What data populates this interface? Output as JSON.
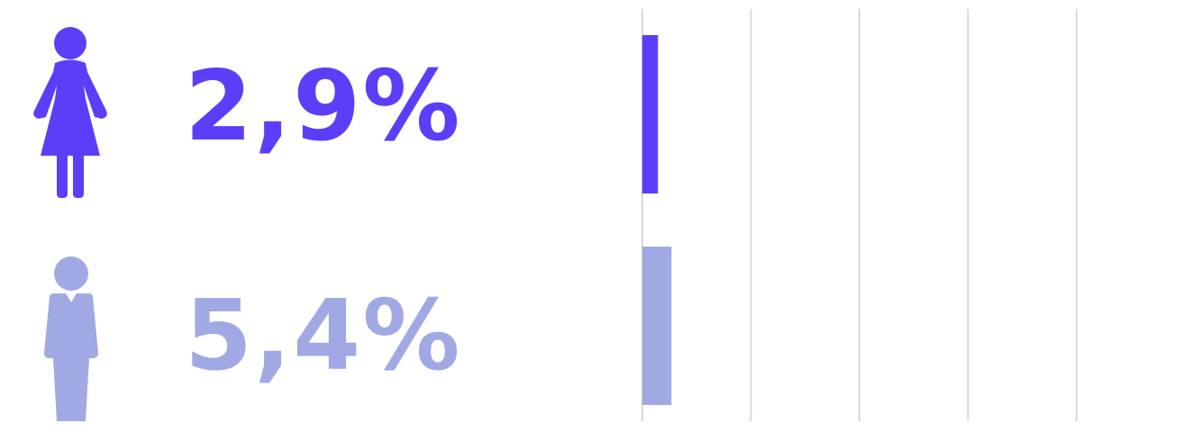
{
  "colors": {
    "female": "#5b3ff8",
    "male": "#a0a9e3",
    "grid": "#d9d9d9"
  },
  "rows": [
    {
      "icon": "female-icon",
      "label": "2,9%"
    },
    {
      "icon": "male-icon",
      "label": "5,4%"
    }
  ],
  "chart_data": {
    "type": "bar",
    "orientation": "horizontal",
    "categories": [
      "female",
      "male"
    ],
    "values": [
      2.9,
      5.4
    ],
    "xlim": [
      0,
      100
    ],
    "grid": true
  }
}
